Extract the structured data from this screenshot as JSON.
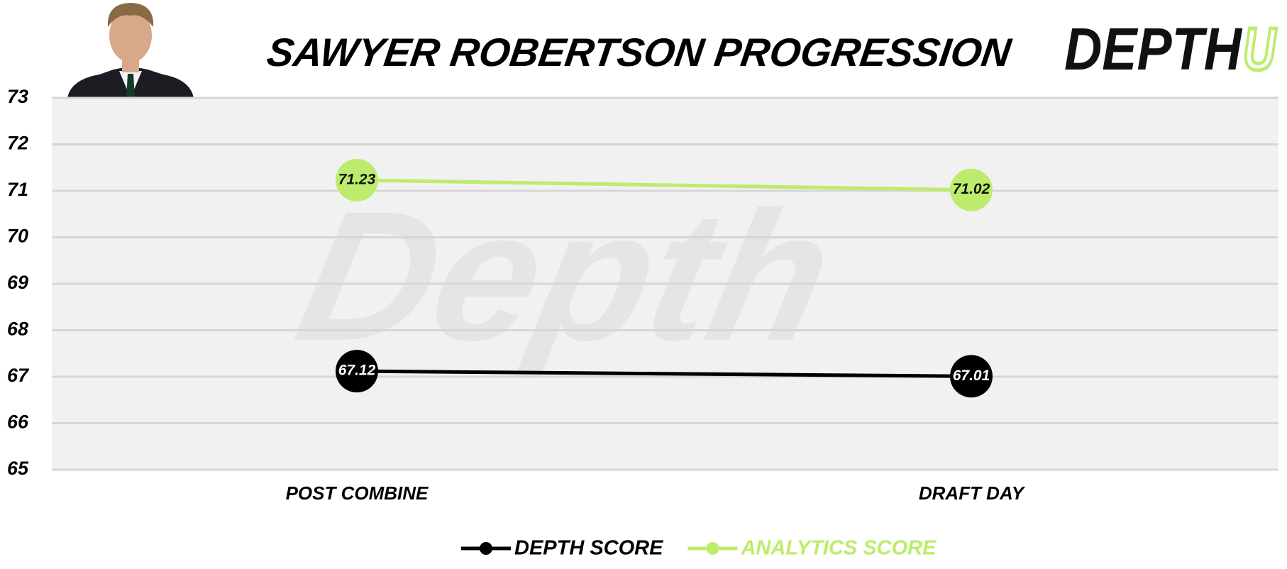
{
  "chart_data": {
    "type": "line",
    "title": "SAWYER ROBERTSON PROGRESSION",
    "logo": [
      "DEPTH",
      "U"
    ],
    "watermark": "Depth",
    "categories": [
      "POST COMBINE",
      "DRAFT DAY"
    ],
    "series": [
      {
        "name": "DEPTH SCORE",
        "color": "#000000",
        "label_color": "#ffffff",
        "values": [
          67.12,
          67.01
        ]
      },
      {
        "name": "ANALYTICS SCORE",
        "color": "#bdec6c",
        "label_color": "#111111",
        "values": [
          71.23,
          71.02
        ]
      }
    ],
    "ylim": [
      65,
      73
    ],
    "yticks": [
      65,
      66,
      67,
      68,
      69,
      70,
      71,
      72,
      73
    ],
    "grid": true,
    "legend": "bottom"
  }
}
